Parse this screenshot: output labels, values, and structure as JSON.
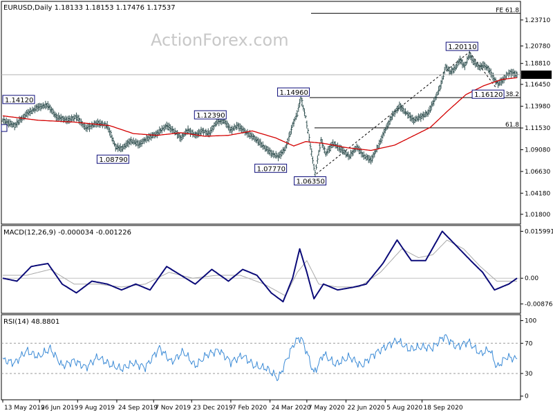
{
  "chart_data": [
    {
      "type": "line",
      "panel": "price",
      "header": "EURUSD,Daily  1.18133 1.18153 1.17476 1.17537",
      "watermark": "ActionForex.com",
      "y_ticks": [
        "1.23710",
        "1.20780",
        "1.18810",
        "1.16450",
        "1.13980",
        "1.11530",
        "1.09080",
        "1.06630",
        "1.04180",
        "1.01800"
      ],
      "y_tick_values": [
        1.2371,
        1.2078,
        1.1881,
        1.1645,
        1.1398,
        1.1153,
        1.0908,
        1.0663,
        1.0418,
        1.018
      ],
      "ylim": [
        1.0085,
        1.2565
      ],
      "last_price": "1.17537",
      "last_price_value": 1.17537,
      "price_path": [
        {
          "i": 0,
          "v": 1.124
        },
        {
          "i": 10,
          "v": 1.118
        },
        {
          "i": 20,
          "v": 1.131
        },
        {
          "i": 30,
          "v": 1.139
        },
        {
          "i": 38,
          "v": 1.141
        },
        {
          "i": 45,
          "v": 1.128
        },
        {
          "i": 55,
          "v": 1.124
        },
        {
          "i": 62,
          "v": 1.128
        },
        {
          "i": 70,
          "v": 1.115
        },
        {
          "i": 80,
          "v": 1.121
        },
        {
          "i": 88,
          "v": 1.118
        },
        {
          "i": 95,
          "v": 1.094
        },
        {
          "i": 100,
          "v": 1.092
        },
        {
          "i": 108,
          "v": 1.101
        },
        {
          "i": 115,
          "v": 1.097
        },
        {
          "i": 122,
          "v": 1.104
        },
        {
          "i": 130,
          "v": 1.109
        },
        {
          "i": 138,
          "v": 1.118
        },
        {
          "i": 145,
          "v": 1.111
        },
        {
          "i": 150,
          "v": 1.104
        },
        {
          "i": 156,
          "v": 1.113
        },
        {
          "i": 162,
          "v": 1.107
        },
        {
          "i": 168,
          "v": 1.112
        },
        {
          "i": 174,
          "v": 1.109
        },
        {
          "i": 180,
          "v": 1.122
        },
        {
          "i": 186,
          "v": 1.124
        },
        {
          "i": 192,
          "v": 1.113
        },
        {
          "i": 198,
          "v": 1.118
        },
        {
          "i": 204,
          "v": 1.111
        },
        {
          "i": 212,
          "v": 1.104
        },
        {
          "i": 220,
          "v": 1.094
        },
        {
          "i": 226,
          "v": 1.087
        },
        {
          "i": 232,
          "v": 1.083
        },
        {
          "i": 238,
          "v": 1.092
        },
        {
          "i": 244,
          "v": 1.118
        },
        {
          "i": 248,
          "v": 1.132
        },
        {
          "i": 251,
          "v": 1.149
        },
        {
          "i": 255,
          "v": 1.128
        },
        {
          "i": 259,
          "v": 1.095
        },
        {
          "i": 263,
          "v": 1.064
        },
        {
          "i": 268,
          "v": 1.102
        },
        {
          "i": 272,
          "v": 1.086
        },
        {
          "i": 278,
          "v": 1.098
        },
        {
          "i": 286,
          "v": 1.09
        },
        {
          "i": 292,
          "v": 1.083
        },
        {
          "i": 298,
          "v": 1.094
        },
        {
          "i": 304,
          "v": 1.084
        },
        {
          "i": 310,
          "v": 1.079
        },
        {
          "i": 316,
          "v": 1.094
        },
        {
          "i": 322,
          "v": 1.113
        },
        {
          "i": 328,
          "v": 1.129
        },
        {
          "i": 334,
          "v": 1.14
        },
        {
          "i": 340,
          "v": 1.132
        },
        {
          "i": 346,
          "v": 1.124
        },
        {
          "i": 352,
          "v": 1.128
        },
        {
          "i": 358,
          "v": 1.132
        },
        {
          "i": 364,
          "v": 1.148
        },
        {
          "i": 369,
          "v": 1.164
        },
        {
          "i": 373,
          "v": 1.185
        },
        {
          "i": 377,
          "v": 1.178
        },
        {
          "i": 381,
          "v": 1.183
        },
        {
          "i": 385,
          "v": 1.192
        },
        {
          "i": 389,
          "v": 1.185
        },
        {
          "i": 393,
          "v": 1.198
        },
        {
          "i": 397,
          "v": 1.189
        },
        {
          "i": 401,
          "v": 1.184
        },
        {
          "i": 405,
          "v": 1.186
        },
        {
          "i": 409,
          "v": 1.182
        },
        {
          "i": 413,
          "v": 1.172
        },
        {
          "i": 417,
          "v": 1.165
        },
        {
          "i": 421,
          "v": 1.169
        },
        {
          "i": 425,
          "v": 1.176
        },
        {
          "i": 429,
          "v": 1.178
        },
        {
          "i": 433,
          "v": 1.175
        }
      ],
      "sma_path": [
        {
          "i": 0,
          "v": 1.129
        },
        {
          "i": 30,
          "v": 1.124
        },
        {
          "i": 60,
          "v": 1.122
        },
        {
          "i": 90,
          "v": 1.118
        },
        {
          "i": 110,
          "v": 1.109
        },
        {
          "i": 130,
          "v": 1.107
        },
        {
          "i": 150,
          "v": 1.11
        },
        {
          "i": 170,
          "v": 1.106
        },
        {
          "i": 190,
          "v": 1.107
        },
        {
          "i": 210,
          "v": 1.112
        },
        {
          "i": 230,
          "v": 1.104
        },
        {
          "i": 245,
          "v": 1.095
        },
        {
          "i": 255,
          "v": 1.1
        },
        {
          "i": 270,
          "v": 1.098
        },
        {
          "i": 290,
          "v": 1.093
        },
        {
          "i": 310,
          "v": 1.09
        },
        {
          "i": 330,
          "v": 1.096
        },
        {
          "i": 345,
          "v": 1.106
        },
        {
          "i": 360,
          "v": 1.116
        },
        {
          "i": 375,
          "v": 1.135
        },
        {
          "i": 390,
          "v": 1.153
        },
        {
          "i": 405,
          "v": 1.163
        },
        {
          "i": 420,
          "v": 1.17
        },
        {
          "i": 433,
          "v": 1.172
        }
      ],
      "annotations": [
        {
          "text": "1.14120",
          "i": 7,
          "v": 1.1412
        },
        {
          "text": "1.08790",
          "i": 98,
          "v": 1.0879
        },
        {
          "text": "1.12390",
          "i": 180,
          "v": 1.1239
        },
        {
          "text": "1.07770",
          "i": 232,
          "v": 1.0777
        },
        {
          "text": "1.14960",
          "i": 250,
          "v": 1.1496
        },
        {
          "text": "1.06350",
          "i": 264,
          "v": 1.0635
        },
        {
          "text": "1.20110",
          "i": 393,
          "v": 1.2011
        },
        {
          "text": "1.16120",
          "i": 415,
          "v": 1.1612
        }
      ],
      "fibo_levels": [
        {
          "text": "FE 61.8",
          "v": 1.2446
        },
        {
          "text": "38.2",
          "v": 1.1496
        },
        {
          "text": "61.8",
          "v": 1.1154
        }
      ]
    },
    {
      "type": "line",
      "panel": "macd",
      "header": "MACD(12,26,9) -0.000034 -0.001226",
      "y_ticks": [
        "0.015991",
        "0.00",
        "-0.00876"
      ],
      "y_tick_values": [
        0.015991,
        0,
        -0.00876
      ],
      "ylim": [
        -0.0115,
        0.0175
      ],
      "macd_path": [
        {
          "i": 0,
          "v": 0.0
        },
        {
          "i": 12,
          "v": -0.001
        },
        {
          "i": 24,
          "v": 0.004
        },
        {
          "i": 38,
          "v": 0.005
        },
        {
          "i": 50,
          "v": -0.002
        },
        {
          "i": 62,
          "v": -0.005
        },
        {
          "i": 75,
          "v": -0.001
        },
        {
          "i": 88,
          "v": -0.002
        },
        {
          "i": 100,
          "v": -0.004
        },
        {
          "i": 112,
          "v": -0.002
        },
        {
          "i": 124,
          "v": -0.004
        },
        {
          "i": 138,
          "v": 0.004
        },
        {
          "i": 150,
          "v": 0.001
        },
        {
          "i": 162,
          "v": -0.002
        },
        {
          "i": 176,
          "v": 0.003
        },
        {
          "i": 190,
          "v": -0.001
        },
        {
          "i": 202,
          "v": 0.003
        },
        {
          "i": 214,
          "v": 0.001
        },
        {
          "i": 226,
          "v": -0.005
        },
        {
          "i": 236,
          "v": -0.008
        },
        {
          "i": 244,
          "v": 0.0
        },
        {
          "i": 250,
          "v": 0.01
        },
        {
          "i": 256,
          "v": 0.002
        },
        {
          "i": 262,
          "v": -0.007
        },
        {
          "i": 270,
          "v": -0.002
        },
        {
          "i": 282,
          "v": -0.004
        },
        {
          "i": 296,
          "v": -0.003
        },
        {
          "i": 306,
          "v": -0.002
        },
        {
          "i": 320,
          "v": 0.005
        },
        {
          "i": 332,
          "v": 0.013
        },
        {
          "i": 344,
          "v": 0.006
        },
        {
          "i": 356,
          "v": 0.006
        },
        {
          "i": 370,
          "v": 0.016
        },
        {
          "i": 382,
          "v": 0.011
        },
        {
          "i": 394,
          "v": 0.006
        },
        {
          "i": 404,
          "v": 0.002
        },
        {
          "i": 414,
          "v": -0.004
        },
        {
          "i": 426,
          "v": -0.002
        },
        {
          "i": 433,
          "v": 0.0
        }
      ],
      "signal_path": [
        {
          "i": 0,
          "v": 0.001
        },
        {
          "i": 20,
          "v": 0.001
        },
        {
          "i": 40,
          "v": 0.003
        },
        {
          "i": 60,
          "v": -0.002
        },
        {
          "i": 80,
          "v": -0.002
        },
        {
          "i": 100,
          "v": -0.003
        },
        {
          "i": 120,
          "v": -0.002
        },
        {
          "i": 140,
          "v": 0.002
        },
        {
          "i": 160,
          "v": 0.0
        },
        {
          "i": 180,
          "v": 0.001
        },
        {
          "i": 200,
          "v": 0.001
        },
        {
          "i": 220,
          "v": -0.002
        },
        {
          "i": 238,
          "v": -0.006
        },
        {
          "i": 248,
          "v": 0.002
        },
        {
          "i": 256,
          "v": 0.006
        },
        {
          "i": 266,
          "v": -0.002
        },
        {
          "i": 282,
          "v": -0.003
        },
        {
          "i": 300,
          "v": -0.003
        },
        {
          "i": 318,
          "v": 0.002
        },
        {
          "i": 336,
          "v": 0.01
        },
        {
          "i": 350,
          "v": 0.007
        },
        {
          "i": 362,
          "v": 0.008
        },
        {
          "i": 374,
          "v": 0.013
        },
        {
          "i": 388,
          "v": 0.01
        },
        {
          "i": 402,
          "v": 0.004
        },
        {
          "i": 416,
          "v": -0.001
        },
        {
          "i": 433,
          "v": -0.001
        }
      ]
    },
    {
      "type": "line",
      "panel": "rsi",
      "header": "RSI(14) 48.8801",
      "y_ticks": [
        "100",
        "70",
        "30",
        "0"
      ],
      "y_tick_values": [
        100,
        70,
        30,
        0
      ],
      "ylim": [
        -3,
        106
      ],
      "levels": [
        70,
        30
      ],
      "rsi_path": [
        {
          "i": 0,
          "v": 48
        },
        {
          "i": 10,
          "v": 44
        },
        {
          "i": 20,
          "v": 60
        },
        {
          "i": 30,
          "v": 52
        },
        {
          "i": 40,
          "v": 63
        },
        {
          "i": 50,
          "v": 40
        },
        {
          "i": 60,
          "v": 47
        },
        {
          "i": 70,
          "v": 38
        },
        {
          "i": 80,
          "v": 52
        },
        {
          "i": 90,
          "v": 42
        },
        {
          "i": 100,
          "v": 36
        },
        {
          "i": 110,
          "v": 44
        },
        {
          "i": 120,
          "v": 38
        },
        {
          "i": 132,
          "v": 64
        },
        {
          "i": 142,
          "v": 45
        },
        {
          "i": 152,
          "v": 59
        },
        {
          "i": 162,
          "v": 40
        },
        {
          "i": 172,
          "v": 55
        },
        {
          "i": 182,
          "v": 61
        },
        {
          "i": 192,
          "v": 45
        },
        {
          "i": 202,
          "v": 54
        },
        {
          "i": 212,
          "v": 40
        },
        {
          "i": 222,
          "v": 37
        },
        {
          "i": 232,
          "v": 23
        },
        {
          "i": 240,
          "v": 52
        },
        {
          "i": 246,
          "v": 72
        },
        {
          "i": 251,
          "v": 78
        },
        {
          "i": 256,
          "v": 58
        },
        {
          "i": 262,
          "v": 30
        },
        {
          "i": 270,
          "v": 56
        },
        {
          "i": 280,
          "v": 42
        },
        {
          "i": 292,
          "v": 52
        },
        {
          "i": 302,
          "v": 40
        },
        {
          "i": 312,
          "v": 55
        },
        {
          "i": 322,
          "v": 65
        },
        {
          "i": 332,
          "v": 74
        },
        {
          "i": 342,
          "v": 62
        },
        {
          "i": 352,
          "v": 65
        },
        {
          "i": 362,
          "v": 64
        },
        {
          "i": 372,
          "v": 80
        },
        {
          "i": 382,
          "v": 65
        },
        {
          "i": 392,
          "v": 72
        },
        {
          "i": 402,
          "v": 56
        },
        {
          "i": 410,
          "v": 62
        },
        {
          "i": 416,
          "v": 38
        },
        {
          "i": 424,
          "v": 52
        },
        {
          "i": 433,
          "v": 49
        }
      ]
    }
  ],
  "x_axis": {
    "n_bars": 434,
    "labels": [
      {
        "text": "13 May 2019",
        "i": 0
      },
      {
        "text": "26 Jun 2019",
        "i": 31
      },
      {
        "text": "9 Aug 2019",
        "i": 63
      },
      {
        "text": "24 Sep 2019",
        "i": 96
      },
      {
        "text": "7 Nov 2019",
        "i": 127
      },
      {
        "text": "23 Dec 2019",
        "i": 159
      },
      {
        "text": "7 Feb 2020",
        "i": 192
      },
      {
        "text": "24 Mar 2020",
        "i": 225
      },
      {
        "text": "7 May 2020",
        "i": 256
      },
      {
        "text": "22 Jun 2020",
        "i": 289
      },
      {
        "text": "5 Aug 2020",
        "i": 322
      },
      {
        "text": "18 Sep 2020",
        "i": 353
      }
    ]
  },
  "colors": {
    "price": "#2f4f4f",
    "sma": "#d40000",
    "macd": "#0a0a78",
    "signal": "#a9a9a9",
    "rsi": "#3a8ad6",
    "label_box": "#0a0a78"
  }
}
